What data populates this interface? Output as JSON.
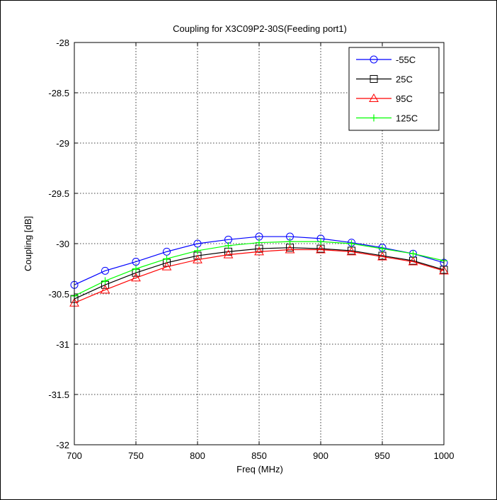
{
  "chart_data": {
    "type": "line",
    "title": "Coupling for X3C09P2-30S(Feeding port1)",
    "xlabel": "Freq (MHz)",
    "ylabel": "Coupling [dB]",
    "xlim": [
      700,
      1000
    ],
    "ylim": [
      -32,
      -28
    ],
    "xticks": [
      700,
      750,
      800,
      850,
      900,
      950,
      1000
    ],
    "xtick_labels": [
      "700",
      "750",
      "800",
      "850",
      "900",
      "950",
      "1000"
    ],
    "yticks": [
      -32,
      -31.5,
      -31,
      -30.5,
      -30,
      -29.5,
      -29,
      -28.5,
      -28
    ],
    "ytick_labels": [
      "-32",
      "-31.5",
      "-31",
      "-30.5",
      "-30",
      "-29.5",
      "-29",
      "-28.5",
      "-28"
    ],
    "grid": true,
    "legend_position": "top-right",
    "x": [
      700,
      725,
      750,
      775,
      800,
      825,
      850,
      875,
      900,
      925,
      950,
      975,
      1000
    ],
    "series": [
      {
        "name": "-55C",
        "color": "#0000ff",
        "marker": "circle",
        "values": [
          -30.41,
          -30.27,
          -30.18,
          -30.08,
          -30.0,
          -29.96,
          -29.93,
          -29.93,
          -29.95,
          -29.99,
          -30.04,
          -30.1,
          -30.19
        ]
      },
      {
        "name": "25C",
        "color": "#000000",
        "marker": "square",
        "values": [
          -30.55,
          -30.41,
          -30.29,
          -30.19,
          -30.12,
          -30.08,
          -30.05,
          -30.04,
          -30.05,
          -30.07,
          -30.12,
          -30.17,
          -30.26
        ]
      },
      {
        "name": "95C",
        "color": "#ff0000",
        "marker": "triangle",
        "values": [
          -30.59,
          -30.46,
          -30.34,
          -30.23,
          -30.16,
          -30.11,
          -30.08,
          -30.06,
          -30.06,
          -30.08,
          -30.13,
          -30.18,
          -30.27
        ]
      },
      {
        "name": "125C",
        "color": "#00ff00",
        "marker": "plus",
        "values": [
          -30.52,
          -30.37,
          -30.25,
          -30.15,
          -30.07,
          -30.02,
          -29.99,
          -29.98,
          -29.98,
          -30.0,
          -30.05,
          -30.1,
          -30.17
        ]
      }
    ]
  }
}
